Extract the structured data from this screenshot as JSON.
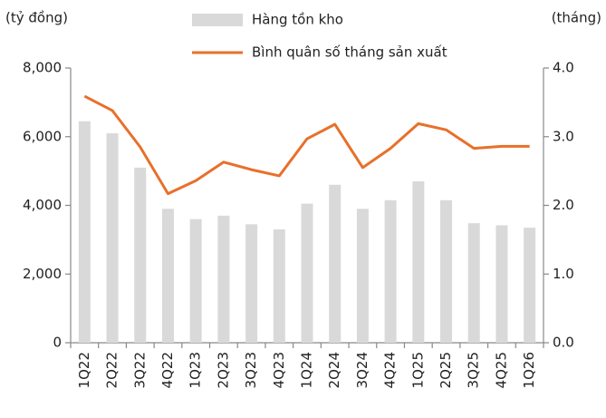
{
  "chart_data": {
    "type": "bar",
    "y_label": "(tỷ đồng)",
    "y2_label": "(tháng)",
    "categories": [
      "1Q22",
      "2Q22",
      "3Q22",
      "4Q22",
      "1Q23",
      "2Q23",
      "3Q23",
      "4Q23",
      "1Q24",
      "2Q24",
      "3Q24",
      "4Q24",
      "1Q25",
      "2Q25",
      "3Q25",
      "4Q25",
      "1Q26"
    ],
    "series": [
      {
        "name": "Hàng tồn kho",
        "type": "bar",
        "color": "#d9d9d9",
        "values": [
          6450,
          6100,
          5100,
          3900,
          3600,
          3700,
          3450,
          3300,
          4050,
          4600,
          3900,
          4150,
          4700,
          4150,
          3480,
          3420,
          3350
        ]
      },
      {
        "name": "Bình quân số tháng sản xuất",
        "type": "line",
        "axis": "y2",
        "color": "#e8702a",
        "values": [
          3.59,
          3.38,
          2.85,
          2.17,
          2.36,
          2.63,
          2.52,
          2.43,
          2.97,
          3.18,
          2.55,
          2.83,
          3.19,
          3.1,
          2.83,
          2.86,
          2.86
        ]
      }
    ],
    "ylim": [
      0,
      8000
    ],
    "yticks": [
      0,
      {
        "value": 2000,
        "label": "2,000"
      },
      {
        "value": 4000,
        "label": "4,000"
      },
      {
        "value": 6000,
        "label": "6,000"
      },
      {
        "value": 8000,
        "label": "8,000"
      }
    ],
    "y2lim": [
      0,
      4
    ],
    "y2ticks": [
      {
        "value": 0,
        "label": "0.0"
      },
      {
        "value": 1,
        "label": "1.0"
      },
      {
        "value": 2,
        "label": "2.0"
      },
      {
        "value": 3,
        "label": "3.0"
      },
      {
        "value": 4,
        "label": "4.0"
      }
    ],
    "grid": false
  }
}
